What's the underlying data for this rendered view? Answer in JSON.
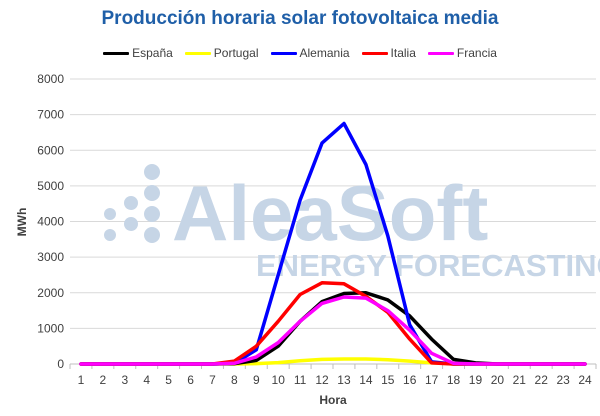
{
  "chart_data": {
    "type": "line",
    "title": "Producción horaria solar fotovoltaica media",
    "xlabel": "Hora",
    "ylabel": "MWh",
    "ylim": [
      0,
      8000
    ],
    "yticks": [
      "0",
      "1000",
      "2000",
      "3000",
      "4000",
      "5000",
      "6000",
      "7000",
      "8000"
    ],
    "categories": [
      "1",
      "2",
      "3",
      "4",
      "5",
      "6",
      "7",
      "8",
      "9",
      "10",
      "11",
      "12",
      "13",
      "14",
      "15",
      "16",
      "17",
      "18",
      "19",
      "20",
      "21",
      "22",
      "23",
      "24"
    ],
    "grid": true,
    "legend_position": "top",
    "series": [
      {
        "name": "España",
        "color": "#000000",
        "values": [
          0,
          0,
          0,
          0,
          0,
          0,
          0,
          10,
          100,
          500,
          1200,
          1750,
          1980,
          2000,
          1800,
          1350,
          700,
          130,
          30,
          0,
          0,
          0,
          0,
          0
        ]
      },
      {
        "name": "Portugal",
        "color": "#ffff00",
        "values": [
          0,
          0,
          0,
          0,
          0,
          0,
          0,
          0,
          10,
          40,
          90,
          130,
          140,
          140,
          120,
          80,
          30,
          5,
          0,
          0,
          0,
          0,
          0,
          0
        ]
      },
      {
        "name": "Alemania",
        "color": "#0000ff",
        "values": [
          0,
          0,
          0,
          0,
          0,
          0,
          0,
          20,
          400,
          2500,
          4600,
          6200,
          6750,
          5600,
          3600,
          1100,
          60,
          0,
          0,
          0,
          0,
          0,
          0,
          0
        ]
      },
      {
        "name": "Italia",
        "color": "#ff0000",
        "values": [
          0,
          0,
          0,
          0,
          0,
          0,
          0,
          80,
          500,
          1200,
          1950,
          2280,
          2250,
          1900,
          1450,
          700,
          30,
          0,
          0,
          0,
          0,
          0,
          0,
          0
        ]
      },
      {
        "name": "Francia",
        "color": "#ff00ff",
        "values": [
          0,
          0,
          0,
          0,
          0,
          0,
          0,
          20,
          200,
          600,
          1200,
          1700,
          1880,
          1850,
          1500,
          950,
          300,
          20,
          0,
          0,
          0,
          0,
          0,
          0
        ]
      }
    ]
  },
  "watermark": {
    "brand": "AleaSoft",
    "tagline": "ENERGY FORECASTING"
  }
}
